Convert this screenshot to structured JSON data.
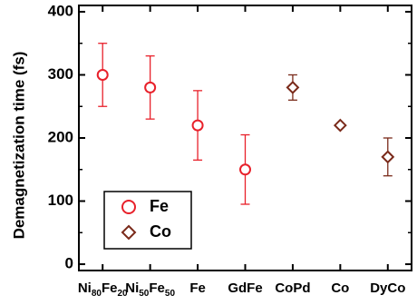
{
  "chart_data": {
    "type": "scatter",
    "ylabel": "Demagnetization time (fs)",
    "ylim": [
      -10,
      410
    ],
    "yticks": [
      0,
      100,
      200,
      300,
      400
    ],
    "categories": [
      {
        "base": "Ni",
        "sub1": "80",
        "mid": "Fe",
        "sub2": "20"
      },
      {
        "base": "Ni",
        "sub1": "50",
        "mid": "Fe",
        "sub2": "50"
      },
      {
        "base": "Fe"
      },
      {
        "base": "GdFe"
      },
      {
        "base": "CoPd"
      },
      {
        "base": "Co"
      },
      {
        "base": "DyCo"
      }
    ],
    "series": [
      {
        "name": "Fe",
        "marker": "circle",
        "color": "#e8202a",
        "points": [
          {
            "x": 0,
            "y": 300,
            "err": 50
          },
          {
            "x": 1,
            "y": 280,
            "err": 50
          },
          {
            "x": 2,
            "y": 220,
            "err": 55
          },
          {
            "x": 3,
            "y": 150,
            "err": 55
          }
        ]
      },
      {
        "name": "Co",
        "marker": "diamond",
        "color": "#7a2a1a",
        "points": [
          {
            "x": 4,
            "y": 280,
            "err": 20
          },
          {
            "x": 5,
            "y": 220,
            "err": 0
          },
          {
            "x": 6,
            "y": 170,
            "err": 30
          }
        ]
      }
    ],
    "legend": {
      "position": "bottom-left",
      "framed": true
    }
  }
}
